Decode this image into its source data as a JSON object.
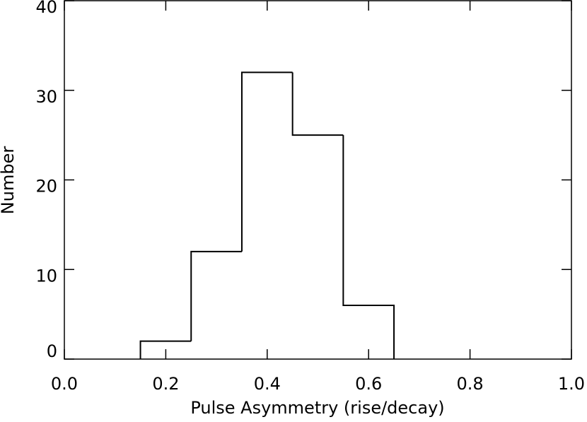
{
  "chart_data": {
    "type": "histogram",
    "x_label": "Pulse Asymmetry (rise/decay)",
    "y_label": "Number",
    "bins": [
      0.15,
      0.25,
      0.35,
      0.45,
      0.55,
      0.65
    ],
    "values": [
      2,
      12,
      32,
      25,
      6
    ],
    "color": "#000000",
    "xlim": [
      0,
      1
    ],
    "ylim": [
      0,
      40
    ],
    "xticks": [
      {
        "value": 0,
        "label": "0.0"
      },
      {
        "value": 0.2,
        "label": "0.2"
      },
      {
        "value": 0.4,
        "label": "0.4"
      },
      {
        "value": 0.6,
        "label": "0.6"
      },
      {
        "value": 0.8,
        "label": "0.8"
      },
      {
        "value": 1,
        "label": "1.0"
      }
    ],
    "yticks": [
      0,
      10,
      20,
      30,
      40
    ]
  }
}
